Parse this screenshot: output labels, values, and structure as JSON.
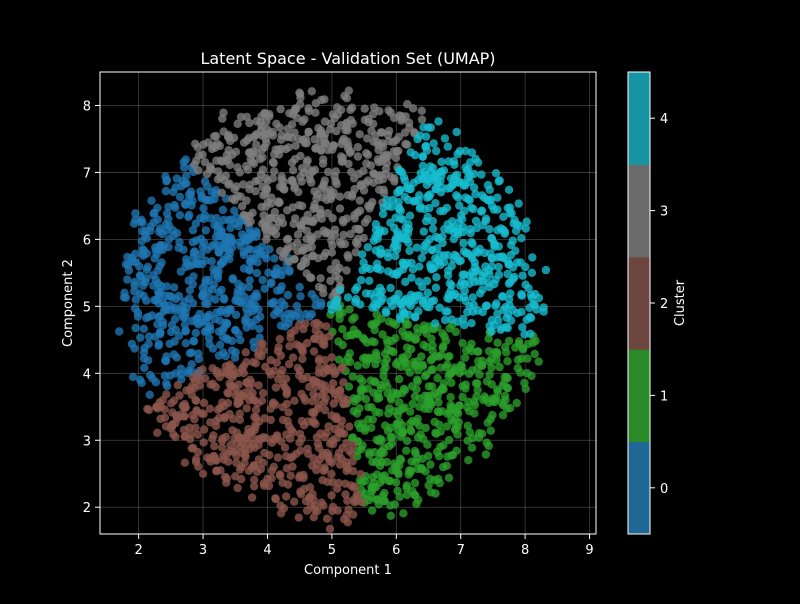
{
  "chart_data": {
    "type": "scatter",
    "title": "Latent Space - Validation Set (UMAP)",
    "xlabel": "Component 1",
    "ylabel": "Component 2",
    "xlim": [
      1.4,
      9.1
    ],
    "ylim": [
      1.6,
      8.5
    ],
    "xticks": [
      2,
      3,
      4,
      5,
      6,
      7,
      8,
      9
    ],
    "yticks": [
      2,
      3,
      4,
      5,
      6,
      7,
      8
    ],
    "grid": true,
    "center": [
      5.0,
      5.0
    ],
    "colorbar": {
      "label": "Cluster",
      "ticks": [
        0,
        1,
        2,
        3,
        4
      ],
      "range": [
        -0.5,
        4.5
      ]
    },
    "clusters": [
      {
        "value": 0,
        "color": "#1f77b4",
        "angle_range": [
          135,
          207
        ]
      },
      {
        "value": 1,
        "color": "#2ca02c",
        "angle_range": [
          279,
          351
        ]
      },
      {
        "value": 2,
        "color": "#8c564b",
        "angle_range": [
          207,
          279
        ]
      },
      {
        "value": 3,
        "color": "#7f7f7f",
        "angle_range": [
          63,
          135
        ]
      },
      {
        "value": 4,
        "color": "#17becf",
        "angle_range": [
          -9,
          63
        ]
      }
    ],
    "colorbar_colors": [
      "#1f6794",
      "#2a8a2a",
      "#6e4640",
      "#6b6b6b",
      "#1794a3"
    ]
  }
}
